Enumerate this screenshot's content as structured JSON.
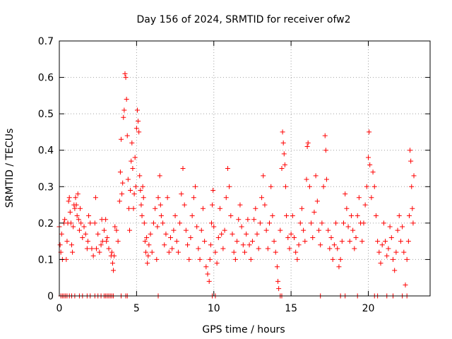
{
  "chart_data": {
    "type": "scatter",
    "title": "Day 156 of 2024, SRMTID for receiver ofw2",
    "xlabel": "GPS time / hours",
    "ylabel": "SRMTID / TECUs",
    "xlim": [
      0,
      24
    ],
    "ylim": [
      0,
      0.7
    ],
    "xticks": [
      0,
      5,
      10,
      15,
      20
    ],
    "xtick_labels": [
      "0",
      "5",
      "10",
      "15",
      "20"
    ],
    "yticks": [
      0,
      0.1,
      0.2,
      0.3,
      0.4,
      0.5,
      0.6,
      0.7
    ],
    "ytick_labels": [
      "0",
      "0.1",
      "0.2",
      "0.3",
      "0.4",
      "0.5",
      "0.6",
      "0.7"
    ],
    "grid": true,
    "marker": "+",
    "series": [
      {
        "name": "SRMTID",
        "color": "#ff0000",
        "points": [
          [
            0.0,
            0.19
          ],
          [
            0.05,
            0.14
          ],
          [
            0.1,
            0.12
          ],
          [
            0.15,
            0.17
          ],
          [
            0.2,
            0.1
          ],
          [
            0.3,
            0.2
          ],
          [
            0.35,
            0.21
          ],
          [
            0.45,
            0.1
          ],
          [
            0.5,
            0.15
          ],
          [
            0.55,
            0.2
          ],
          [
            0.6,
            0.26
          ],
          [
            0.65,
            0.27
          ],
          [
            0.7,
            0.23
          ],
          [
            0.75,
            0.2
          ],
          [
            0.8,
            0.14
          ],
          [
            0.85,
            0.12
          ],
          [
            0.9,
            0.19
          ],
          [
            0.95,
            0.25
          ],
          [
            1.0,
            0.24
          ],
          [
            1.05,
            0.27
          ],
          [
            1.1,
            0.25
          ],
          [
            1.15,
            0.22
          ],
          [
            1.2,
            0.28
          ],
          [
            1.25,
            0.21
          ],
          [
            1.3,
            0.18
          ],
          [
            1.35,
            0.24
          ],
          [
            1.4,
            0.2
          ],
          [
            1.5,
            0.16
          ],
          [
            1.6,
            0.19
          ],
          [
            1.7,
            0.17
          ],
          [
            1.8,
            0.13
          ],
          [
            1.85,
            0.15
          ],
          [
            1.9,
            0.22
          ],
          [
            2.0,
            0.2
          ],
          [
            2.1,
            0.13
          ],
          [
            2.2,
            0.11
          ],
          [
            2.3,
            0.2
          ],
          [
            2.35,
            0.27
          ],
          [
            2.4,
            0.13
          ],
          [
            2.5,
            0.17
          ],
          [
            2.6,
            0.12
          ],
          [
            2.7,
            0.14
          ],
          [
            2.75,
            0.21
          ],
          [
            2.8,
            0.15
          ],
          [
            2.9,
            0.18
          ],
          [
            3.0,
            0.21
          ],
          [
            3.05,
            0.15
          ],
          [
            3.1,
            0.16
          ],
          [
            3.2,
            0.13
          ],
          [
            3.35,
            0.11
          ],
          [
            3.4,
            0.12
          ],
          [
            3.45,
            0.09
          ],
          [
            3.5,
            0.07
          ],
          [
            3.55,
            0.11
          ],
          [
            3.6,
            0.19
          ],
          [
            3.7,
            0.18
          ],
          [
            3.8,
            0.15
          ],
          [
            3.9,
            0.26
          ],
          [
            3.95,
            0.34
          ],
          [
            4.0,
            0.43
          ],
          [
            4.05,
            0.28
          ],
          [
            4.1,
            0.31
          ],
          [
            4.15,
            0.49
          ],
          [
            4.2,
            0.51
          ],
          [
            4.25,
            0.61
          ],
          [
            4.3,
            0.6
          ],
          [
            4.35,
            0.54
          ],
          [
            4.4,
            0.44
          ],
          [
            4.45,
            0.32
          ],
          [
            4.5,
            0.24
          ],
          [
            4.55,
            0.18
          ],
          [
            4.6,
            0.29
          ],
          [
            4.65,
            0.37
          ],
          [
            4.7,
            0.42
          ],
          [
            4.75,
            0.35
          ],
          [
            4.8,
            0.24
          ],
          [
            4.85,
            0.28
          ],
          [
            4.9,
            0.38
          ],
          [
            4.95,
            0.3
          ],
          [
            5.0,
            0.46
          ],
          [
            5.05,
            0.51
          ],
          [
            5.1,
            0.48
          ],
          [
            5.15,
            0.45
          ],
          [
            5.2,
            0.33
          ],
          [
            5.25,
            0.29
          ],
          [
            5.3,
            0.25
          ],
          [
            5.35,
            0.22
          ],
          [
            5.4,
            0.3
          ],
          [
            5.45,
            0.27
          ],
          [
            5.5,
            0.2
          ],
          [
            5.55,
            0.15
          ],
          [
            5.6,
            0.12
          ],
          [
            5.65,
            0.16
          ],
          [
            5.7,
            0.09
          ],
          [
            5.75,
            0.11
          ],
          [
            5.8,
            0.14
          ],
          [
            5.9,
            0.17
          ],
          [
            6.0,
            0.12
          ],
          [
            6.1,
            0.2
          ],
          [
            6.2,
            0.24
          ],
          [
            6.3,
            0.1
          ],
          [
            6.35,
            0.19
          ],
          [
            6.4,
            0.27
          ],
          [
            6.5,
            0.33
          ],
          [
            6.55,
            0.25
          ],
          [
            6.6,
            0.22
          ],
          [
            6.7,
            0.2
          ],
          [
            6.8,
            0.14
          ],
          [
            6.9,
            0.17
          ],
          [
            7.0,
            0.27
          ],
          [
            7.1,
            0.12
          ],
          [
            7.2,
            0.16
          ],
          [
            7.3,
            0.13
          ],
          [
            7.4,
            0.18
          ],
          [
            7.5,
            0.22
          ],
          [
            7.6,
            0.15
          ],
          [
            7.7,
            0.12
          ],
          [
            7.8,
            0.2
          ],
          [
            7.9,
            0.28
          ],
          [
            8.0,
            0.35
          ],
          [
            8.1,
            0.25
          ],
          [
            8.2,
            0.18
          ],
          [
            8.3,
            0.14
          ],
          [
            8.4,
            0.1
          ],
          [
            8.5,
            0.16
          ],
          [
            8.6,
            0.22
          ],
          [
            8.7,
            0.27
          ],
          [
            8.8,
            0.3
          ],
          [
            8.9,
            0.19
          ],
          [
            9.0,
            0.13
          ],
          [
            9.1,
            0.1
          ],
          [
            9.2,
            0.18
          ],
          [
            9.3,
            0.24
          ],
          [
            9.4,
            0.15
          ],
          [
            9.5,
            0.08
          ],
          [
            9.6,
            0.06
          ],
          [
            9.7,
            0.04
          ],
          [
            9.75,
            0.1
          ],
          [
            9.8,
            0.14
          ],
          [
            9.85,
            0.2
          ],
          [
            9.9,
            0.25
          ],
          [
            9.95,
            0.29
          ],
          [
            10.0,
            0.19
          ],
          [
            10.1,
            0.12
          ],
          [
            10.2,
            0.09
          ],
          [
            10.3,
            0.16
          ],
          [
            10.4,
            0.24
          ],
          [
            10.5,
            0.17
          ],
          [
            10.6,
            0.13
          ],
          [
            10.7,
            0.18
          ],
          [
            10.8,
            0.27
          ],
          [
            10.9,
            0.35
          ],
          [
            11.0,
            0.3
          ],
          [
            11.1,
            0.22
          ],
          [
            11.2,
            0.17
          ],
          [
            11.3,
            0.12
          ],
          [
            11.4,
            0.1
          ],
          [
            11.5,
            0.15
          ],
          [
            11.6,
            0.21
          ],
          [
            11.7,
            0.25
          ],
          [
            11.8,
            0.19
          ],
          [
            11.9,
            0.14
          ],
          [
            12.0,
            0.12
          ],
          [
            12.1,
            0.17
          ],
          [
            12.2,
            0.21
          ],
          [
            12.3,
            0.14
          ],
          [
            12.4,
            0.1
          ],
          [
            12.5,
            0.15
          ],
          [
            12.6,
            0.21
          ],
          [
            12.7,
            0.24
          ],
          [
            12.8,
            0.17
          ],
          [
            12.9,
            0.13
          ],
          [
            13.0,
            0.2
          ],
          [
            13.1,
            0.27
          ],
          [
            13.2,
            0.33
          ],
          [
            13.3,
            0.25
          ],
          [
            13.4,
            0.18
          ],
          [
            13.5,
            0.13
          ],
          [
            13.6,
            0.2
          ],
          [
            13.7,
            0.3
          ],
          [
            13.8,
            0.22
          ],
          [
            13.9,
            0.15
          ],
          [
            14.0,
            0.12
          ],
          [
            14.1,
            0.08
          ],
          [
            14.15,
            0.04
          ],
          [
            14.2,
            0.02
          ],
          [
            14.3,
            0.18
          ],
          [
            14.4,
            0.35
          ],
          [
            14.45,
            0.45
          ],
          [
            14.5,
            0.42
          ],
          [
            14.55,
            0.39
          ],
          [
            14.6,
            0.36
          ],
          [
            14.65,
            0.3
          ],
          [
            14.7,
            0.22
          ],
          [
            14.8,
            0.16
          ],
          [
            14.9,
            0.13
          ],
          [
            15.0,
            0.17
          ],
          [
            15.1,
            0.22
          ],
          [
            15.2,
            0.16
          ],
          [
            15.3,
            0.12
          ],
          [
            15.4,
            0.1
          ],
          [
            15.5,
            0.14
          ],
          [
            15.6,
            0.2
          ],
          [
            15.7,
            0.24
          ],
          [
            15.8,
            0.18
          ],
          [
            15.9,
            0.15
          ],
          [
            16.0,
            0.32
          ],
          [
            16.05,
            0.41
          ],
          [
            16.1,
            0.42
          ],
          [
            16.2,
            0.3
          ],
          [
            16.3,
            0.2
          ],
          [
            16.4,
            0.16
          ],
          [
            16.5,
            0.23
          ],
          [
            16.6,
            0.33
          ],
          [
            16.7,
            0.26
          ],
          [
            16.8,
            0.18
          ],
          [
            16.9,
            0.14
          ],
          [
            17.0,
            0.2
          ],
          [
            17.1,
            0.3
          ],
          [
            17.2,
            0.44
          ],
          [
            17.25,
            0.4
          ],
          [
            17.3,
            0.32
          ],
          [
            17.4,
            0.18
          ],
          [
            17.5,
            0.13
          ],
          [
            17.6,
            0.16
          ],
          [
            17.7,
            0.1
          ],
          [
            17.8,
            0.14
          ],
          [
            17.9,
            0.2
          ],
          [
            18.0,
            0.13
          ],
          [
            18.1,
            0.08
          ],
          [
            18.2,
            0.1
          ],
          [
            18.3,
            0.15
          ],
          [
            18.4,
            0.2
          ],
          [
            18.5,
            0.28
          ],
          [
            18.6,
            0.24
          ],
          [
            18.7,
            0.19
          ],
          [
            18.8,
            0.15
          ],
          [
            18.9,
            0.22
          ],
          [
            19.0,
            0.18
          ],
          [
            19.1,
            0.13
          ],
          [
            19.2,
            0.16
          ],
          [
            19.3,
            0.22
          ],
          [
            19.4,
            0.27
          ],
          [
            19.5,
            0.2
          ],
          [
            19.6,
            0.15
          ],
          [
            19.7,
            0.2
          ],
          [
            19.8,
            0.25
          ],
          [
            19.9,
            0.3
          ],
          [
            20.0,
            0.38
          ],
          [
            20.05,
            0.45
          ],
          [
            20.1,
            0.36
          ],
          [
            20.2,
            0.27
          ],
          [
            20.3,
            0.34
          ],
          [
            20.4,
            0.3
          ],
          [
            20.5,
            0.22
          ],
          [
            20.6,
            0.15
          ],
          [
            20.7,
            0.12
          ],
          [
            20.8,
            0.09
          ],
          [
            20.9,
            0.14
          ],
          [
            21.0,
            0.2
          ],
          [
            21.1,
            0.15
          ],
          [
            21.2,
            0.11
          ],
          [
            21.3,
            0.13
          ],
          [
            21.4,
            0.19
          ],
          [
            21.5,
            0.16
          ],
          [
            21.6,
            0.1
          ],
          [
            21.7,
            0.07
          ],
          [
            21.8,
            0.12
          ],
          [
            21.9,
            0.18
          ],
          [
            22.0,
            0.22
          ],
          [
            22.1,
            0.15
          ],
          [
            22.2,
            0.19
          ],
          [
            22.3,
            0.12
          ],
          [
            22.4,
            0.03
          ],
          [
            22.5,
            0.1
          ],
          [
            22.6,
            0.15
          ],
          [
            22.65,
            0.22
          ],
          [
            22.7,
            0.4
          ],
          [
            22.75,
            0.37
          ],
          [
            22.8,
            0.3
          ],
          [
            22.85,
            0.24
          ],
          [
            22.9,
            0.2
          ],
          [
            22.95,
            0.33
          ]
        ],
        "zero_points_x": [
          0.1,
          0.2,
          0.3,
          0.4,
          0.5,
          0.65,
          0.8,
          1.0,
          1.3,
          1.5,
          1.8,
          2.0,
          2.3,
          2.5,
          2.7,
          2.9,
          3.0,
          3.1,
          3.2,
          3.3,
          3.4,
          3.5,
          4.0,
          4.3,
          4.4,
          6.4,
          9.9,
          10.1,
          14.3,
          14.4,
          16.9,
          18.2,
          18.5,
          19.3,
          20.4,
          20.6,
          21.2,
          21.6,
          22.2,
          22.5
        ]
      }
    ]
  }
}
